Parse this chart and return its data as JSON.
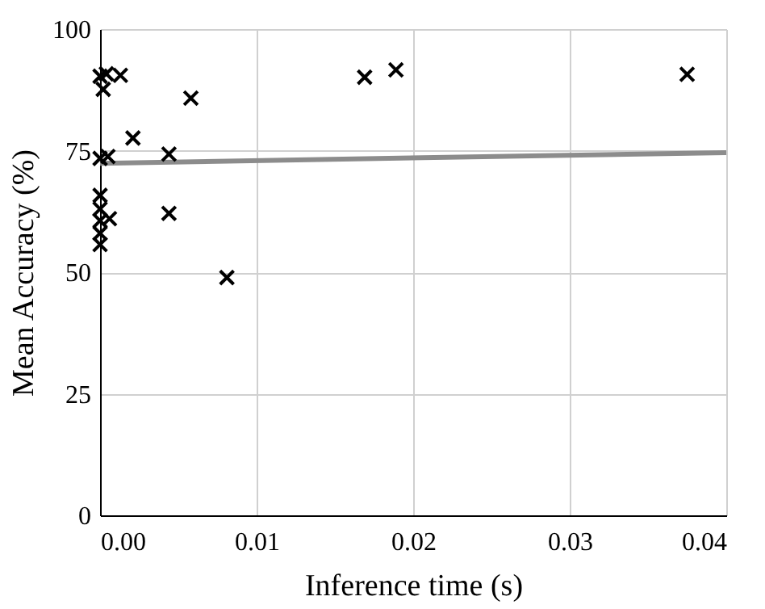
{
  "chart_data": {
    "type": "scatter",
    "xlabel": "Inference time (s)",
    "ylabel": "Mean Accuracy (%)",
    "xlim": [
      0,
      0.04
    ],
    "ylim": [
      0,
      100
    ],
    "xticks": [
      {
        "value": 0,
        "label": "0.00"
      },
      {
        "value": 0.01,
        "label": "0.01"
      },
      {
        "value": 0.02,
        "label": "0.02"
      },
      {
        "value": 0.03,
        "label": "0.03"
      },
      {
        "value": 0.04,
        "label": "0.04"
      }
    ],
    "yticks": [
      0,
      25,
      50,
      75,
      100
    ],
    "grid": true,
    "marker": "cross",
    "series": [
      {
        "color": "#000000",
        "x": [
          0.0375,
          0.0189,
          0.0169,
          0.0081,
          0.0058,
          0.0044,
          0.0044,
          0.0021,
          0.0013,
          0.0004,
          0.0002,
          0.0,
          0.0,
          0.0005,
          0.0,
          0.0,
          0.0,
          0.0006,
          0.0,
          0.0
        ],
        "values": [
          90.7,
          91.6,
          90.1,
          48.9,
          85.8,
          74.3,
          62.1,
          77.6,
          90.5,
          90.8,
          87.6,
          90.3,
          73.4,
          73.8,
          65.8,
          63,
          60.6,
          61,
          58,
          55.7
        ]
      },
      {
        "type": "line",
        "color": "#8c8c8c",
        "marker": "none",
        "x": [
          0,
          0.04
        ],
        "values": [
          72.4,
          74.6
        ]
      }
    ]
  }
}
